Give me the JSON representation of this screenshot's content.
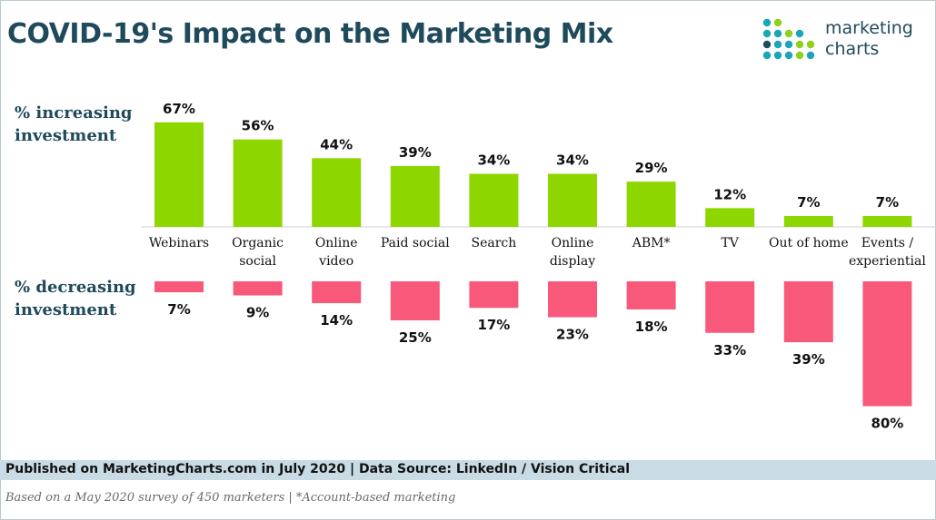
{
  "title": "COVID-19's Impact on the Marketing Mix",
  "logo": {
    "text": "marketing\ncharts",
    "dot_colors": [
      "#1aa6b7",
      "#8fd11a",
      "#1f4a5b"
    ]
  },
  "labels": {
    "increasing": "% increasing\ninvestment",
    "decreasing": "% decreasing\ninvestment"
  },
  "footer": {
    "published": "Published on MarketingCharts.com in July 2020 | Data Source: LinkedIn / Vision Critical",
    "note": "Based on a May 2020 survey of 450 marketers | *Account-based marketing"
  },
  "colors": {
    "increase": "#8dd600",
    "decrease": "#f8587a",
    "title": "#1f4a5b",
    "footer_bar": "#c9dbe4"
  },
  "chart_data": {
    "type": "bar",
    "title": "COVID-19's Impact on the Marketing Mix",
    "categories": [
      "Webinars",
      "Organic\nsocial",
      "Online\nvideo",
      "Paid social",
      "Search",
      "Online\ndisplay",
      "ABM*",
      "TV",
      "Out of home",
      "Events /\nexperiential"
    ],
    "series": [
      {
        "name": "% increasing investment",
        "values": [
          67,
          56,
          44,
          39,
          34,
          34,
          29,
          12,
          7,
          7
        ],
        "labels": [
          "67%",
          "56%",
          "44%",
          "39%",
          "34%",
          "34%",
          "29%",
          "12%",
          "7%",
          "7%"
        ]
      },
      {
        "name": "% decreasing investment",
        "values": [
          7,
          9,
          14,
          25,
          17,
          23,
          18,
          33,
          39,
          80
        ],
        "labels": [
          "7%",
          "9%",
          "14%",
          "25%",
          "17%",
          "23%",
          "18%",
          "33%",
          "39%",
          "80%"
        ]
      }
    ],
    "ylim": [
      0,
      80
    ],
    "grid": false,
    "legend": "none"
  }
}
